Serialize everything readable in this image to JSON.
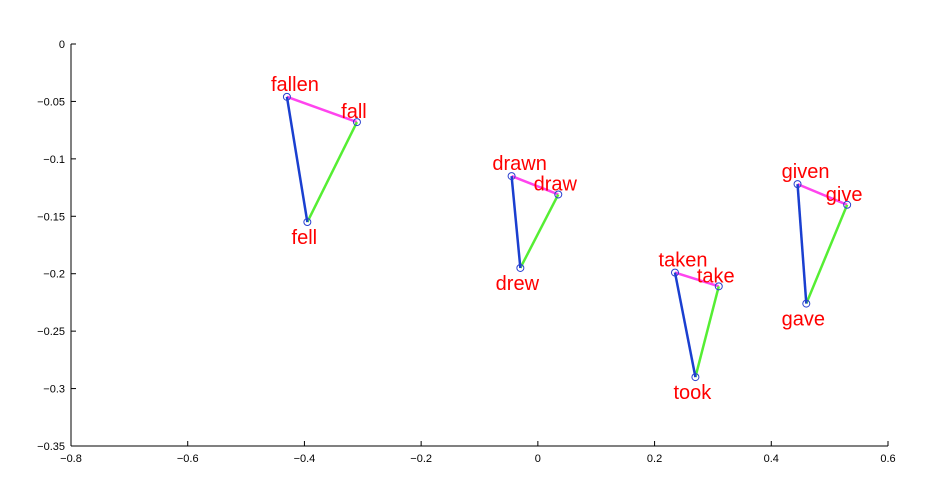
{
  "chart_data": {
    "type": "scatter",
    "title": "",
    "xlabel": "",
    "ylabel": "",
    "xlim": [
      -0.8,
      0.6
    ],
    "ylim": [
      -0.35,
      0
    ],
    "xticks": [
      -0.8,
      -0.6,
      -0.4,
      -0.2,
      0,
      0.2,
      0.4,
      0.6
    ],
    "yticks": [
      0,
      -0.05,
      -0.1,
      -0.15,
      -0.2,
      -0.25,
      -0.3,
      -0.35
    ],
    "xtick_labels": [
      "−0.8",
      "−0.6",
      "−0.4",
      "−0.2",
      "0",
      "0.2",
      "0.4",
      "0.6"
    ],
    "ytick_labels": [
      "0",
      "−0.05",
      "−0.1",
      "−0.15",
      "−0.2",
      "−0.25",
      "−0.3",
      "−0.35"
    ],
    "grid": false,
    "colors": {
      "edge_base_past": "#ff44ee",
      "edge_base_participle": "#55ee33",
      "edge_participle_past": "#1a3fd0",
      "marker": "#2a3fd0",
      "label": "#ff0000"
    },
    "groups": [
      {
        "verb": "fall",
        "points": [
          {
            "word": "fallen",
            "x": -0.43,
            "y": -0.046
          },
          {
            "word": "fall",
            "x": -0.31,
            "y": -0.068
          },
          {
            "word": "fell",
            "x": -0.395,
            "y": -0.155
          }
        ]
      },
      {
        "verb": "draw",
        "points": [
          {
            "word": "drawn",
            "x": -0.045,
            "y": -0.115
          },
          {
            "word": "draw",
            "x": 0.035,
            "y": -0.131
          },
          {
            "word": "drew",
            "x": -0.03,
            "y": -0.195
          }
        ]
      },
      {
        "verb": "take",
        "points": [
          {
            "word": "taken",
            "x": 0.235,
            "y": -0.199
          },
          {
            "word": "take",
            "x": 0.31,
            "y": -0.211
          },
          {
            "word": "took",
            "x": 0.27,
            "y": -0.29
          }
        ]
      },
      {
        "verb": "give",
        "points": [
          {
            "word": "given",
            "x": 0.445,
            "y": -0.122
          },
          {
            "word": "give",
            "x": 0.53,
            "y": -0.14
          },
          {
            "word": "gave",
            "x": 0.46,
            "y": -0.226
          }
        ]
      }
    ]
  }
}
